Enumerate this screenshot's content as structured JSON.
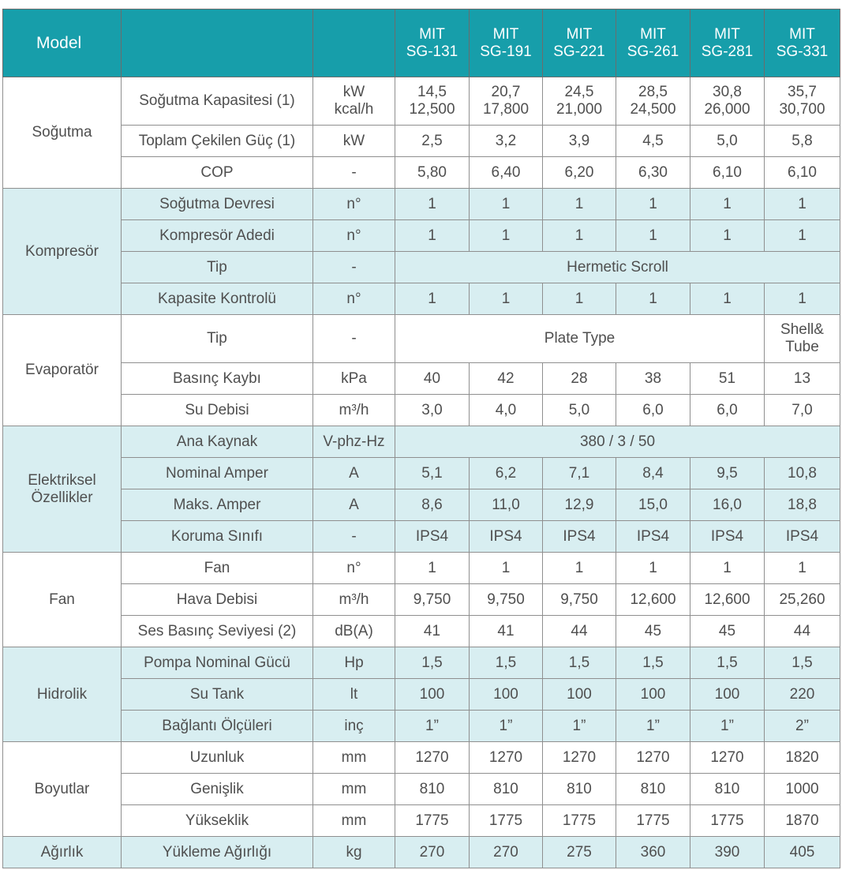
{
  "header": {
    "model_label": "Model",
    "models": [
      "MIT\nSG-131",
      "MIT\nSG-191",
      "MIT\nSG-221",
      "MIT\nSG-261",
      "MIT\nSG-281",
      "MIT\nSG-331"
    ]
  },
  "groups": [
    {
      "name": "Soğutma",
      "tint": "light",
      "rows": [
        {
          "param": "Soğutma Kapasitesi (1)",
          "unit": "kW\nkcal/h",
          "values": [
            "14,5\n12,500",
            "20,7\n17,800",
            "24,5\n21,000",
            "28,5\n24,500",
            "30,8\n26,000",
            "35,7\n30,700"
          ],
          "tall": true
        },
        {
          "param": "Toplam Çekilen Güç (1)",
          "unit": "kW",
          "values": [
            "2,5",
            "3,2",
            "3,9",
            "4,5",
            "5,0",
            "5,8"
          ]
        },
        {
          "param": "COP",
          "unit": "-",
          "values": [
            "5,80",
            "6,40",
            "6,20",
            "6,30",
            "6,10",
            "6,10"
          ]
        }
      ]
    },
    {
      "name": "Kompresör",
      "tint": "blue",
      "rows": [
        {
          "param": "Soğutma Devresi",
          "unit": "n°",
          "values": [
            "1",
            "1",
            "1",
            "1",
            "1",
            "1"
          ]
        },
        {
          "param": "Kompresör Adedi",
          "unit": "n°",
          "values": [
            "1",
            "1",
            "1",
            "1",
            "1",
            "1"
          ]
        },
        {
          "param": "Tip",
          "unit": "-",
          "span": "Hermetic Scroll"
        },
        {
          "param": "Kapasite Kontrolü",
          "unit": "n°",
          "values": [
            "1",
            "1",
            "1",
            "1",
            "1",
            "1"
          ]
        }
      ]
    },
    {
      "name": "Evaporatör",
      "tint": "light",
      "rows": [
        {
          "param": "Tip",
          "unit": "-",
          "span5": "Plate Type",
          "last": "Shell&\nTube",
          "tall": true
        },
        {
          "param": "Basınç Kaybı",
          "unit": "kPa",
          "values": [
            "40",
            "42",
            "28",
            "38",
            "51",
            "13"
          ]
        },
        {
          "param": "Su Debisi",
          "unit": "m³/h",
          "values": [
            "3,0",
            "4,0",
            "5,0",
            "6,0",
            "6,0",
            "7,0"
          ]
        }
      ]
    },
    {
      "name": "Elektriksel\nÖzellikler",
      "tint": "blue",
      "rows": [
        {
          "param": "Ana Kaynak",
          "unit": "V-phz-Hz",
          "span": "380 / 3 / 50"
        },
        {
          "param": "Nominal Amper",
          "unit": "A",
          "values": [
            "5,1",
            "6,2",
            "7,1",
            "8,4",
            "9,5",
            "10,8"
          ]
        },
        {
          "param": "Maks. Amper",
          "unit": "A",
          "values": [
            "8,6",
            "11,0",
            "12,9",
            "15,0",
            "16,0",
            "18,8"
          ]
        },
        {
          "param": "Koruma Sınıfı",
          "unit": "-",
          "values": [
            "IPS4",
            "IPS4",
            "IPS4",
            "IPS4",
            "IPS4",
            "IPS4"
          ]
        }
      ]
    },
    {
      "name": "Fan",
      "tint": "light",
      "rows": [
        {
          "param": "Fan",
          "unit": "n°",
          "values": [
            "1",
            "1",
            "1",
            "1",
            "1",
            "1"
          ]
        },
        {
          "param": "Hava Debisi",
          "unit": "m³/h",
          "values": [
            "9,750",
            "9,750",
            "9,750",
            "12,600",
            "12,600",
            "25,260"
          ]
        },
        {
          "param": "Ses Basınç Seviyesi (2)",
          "unit": "dB(A)",
          "values": [
            "41",
            "41",
            "44",
            "45",
            "45",
            "44"
          ]
        }
      ]
    },
    {
      "name": "Hidrolik",
      "tint": "blue",
      "rows": [
        {
          "param": "Pompa Nominal Gücü",
          "unit": "Hp",
          "values": [
            "1,5",
            "1,5",
            "1,5",
            "1,5",
            "1,5",
            "1,5"
          ]
        },
        {
          "param": "Su Tank",
          "unit": "lt",
          "values": [
            "100",
            "100",
            "100",
            "100",
            "100",
            "220"
          ]
        },
        {
          "param": "Bağlantı Ölçüleri",
          "unit": "inç",
          "values": [
            "1”",
            "1”",
            "1”",
            "1”",
            "1”",
            "2”"
          ]
        }
      ]
    },
    {
      "name": "Boyutlar",
      "tint": "light",
      "rows": [
        {
          "param": "Uzunluk",
          "unit": "mm",
          "values": [
            "1270",
            "1270",
            "1270",
            "1270",
            "1270",
            "1820"
          ]
        },
        {
          "param": "Genişlik",
          "unit": "mm",
          "values": [
            "810",
            "810",
            "810",
            "810",
            "810",
            "1000"
          ]
        },
        {
          "param": "Yükseklik",
          "unit": "mm",
          "values": [
            "1775",
            "1775",
            "1775",
            "1775",
            "1775",
            "1870"
          ]
        }
      ]
    },
    {
      "name": "Ağırlık",
      "tint": "blue",
      "rows": [
        {
          "param": "Yükleme Ağırlığı",
          "unit": "kg",
          "values": [
            "270",
            "270",
            "275",
            "360",
            "390",
            "405"
          ]
        }
      ]
    }
  ]
}
